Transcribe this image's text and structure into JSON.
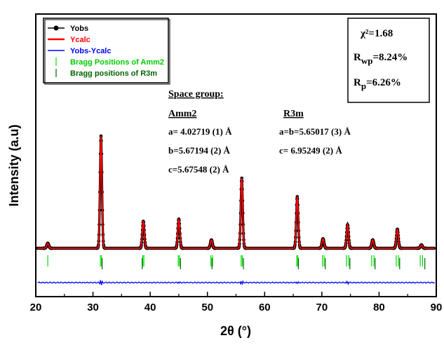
{
  "chart_data": {
    "type": "line",
    "xlabel": "2θ (°)",
    "ylabel": "Intensity (a.u)",
    "xlim": [
      20,
      90
    ],
    "xticks": [
      "20",
      "30",
      "40",
      "50",
      "60",
      "70",
      "80",
      "90"
    ],
    "grid": false,
    "legend_position": "top-left",
    "legend": [
      {
        "label": "Yobs",
        "color": "#000000",
        "marker": "circle"
      },
      {
        "label": "Ycalc",
        "color": "#ff0000",
        "marker": "line"
      },
      {
        "label": "Yobs-Ycalc",
        "color": "#0000ff",
        "marker": "line"
      },
      {
        "label": "Bragg Positions of Amm2",
        "color": "#00dd00",
        "marker": "tick"
      },
      {
        "label": "Bragg positions of R3m",
        "color": "#006400",
        "marker": "tick"
      }
    ],
    "peaks": [
      {
        "x": 22.1,
        "y": 0.045
      },
      {
        "x": 31.4,
        "y": 1.0
      },
      {
        "x": 38.8,
        "y": 0.24
      },
      {
        "x": 45.0,
        "y": 0.26
      },
      {
        "x": 50.7,
        "y": 0.075
      },
      {
        "x": 56.0,
        "y": 0.625
      },
      {
        "x": 65.7,
        "y": 0.46
      },
      {
        "x": 70.2,
        "y": 0.085
      },
      {
        "x": 74.5,
        "y": 0.21
      },
      {
        "x": 78.9,
        "y": 0.075
      },
      {
        "x": 83.2,
        "y": 0.17
      },
      {
        "x": 87.4,
        "y": 0.03
      }
    ],
    "bragg_amm2": [
      22.1,
      31.3,
      31.5,
      38.7,
      38.9,
      44.9,
      45.1,
      50.6,
      50.9,
      55.9,
      56.1,
      65.6,
      65.8,
      70.1,
      70.4,
      74.3,
      74.7,
      78.7,
      79.1,
      83.0,
      83.4,
      87.2,
      87.6
    ],
    "bragg_r3m": [
      31.6,
      38.6,
      45.3,
      50.8,
      56.3,
      65.9,
      70.6,
      74.9,
      79.3,
      83.6,
      88.0
    ],
    "difference_spikes": [
      {
        "x": 31.4,
        "y": 1.0
      },
      {
        "x": 45.0,
        "y": 0.35
      },
      {
        "x": 56.0,
        "y": 0.45
      },
      {
        "x": 65.7,
        "y": 0.4
      },
      {
        "x": 74.5,
        "y": 0.3
      }
    ],
    "fit_stats": {
      "chi2": "χ²=1.68",
      "rwp_label": "R",
      "rwp_sub": "wp",
      "rwp_val": "=8.24%",
      "rp_label": "R",
      "rp_sub": "p",
      "rp_val": "=6.26%"
    },
    "annotations": {
      "space_group": "Space group:",
      "amm2": {
        "title": "Amm2",
        "a": "a= 4.02719 (1) Å",
        "b": "b=5.67194  (2) Å",
        "c": "c=5.67548  (2) Å"
      },
      "r3m": {
        "title": "R3m",
        "ab": "a=b=5.65017 (3) Å",
        "c": "c= 6.95249    (2) Å"
      }
    }
  }
}
